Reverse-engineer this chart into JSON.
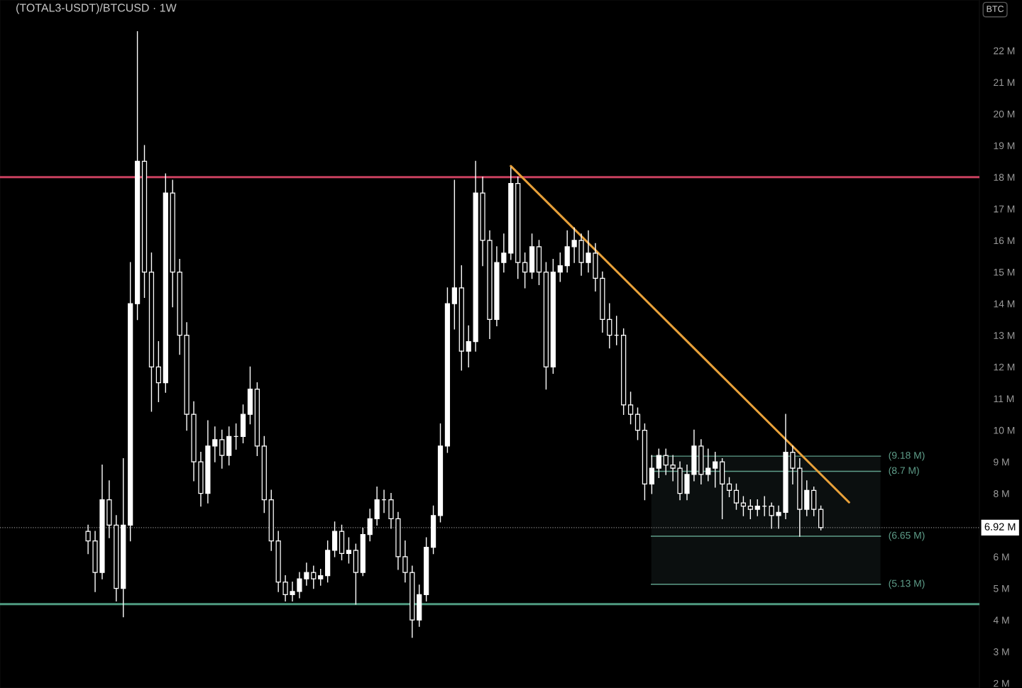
{
  "chart_data": {
    "type": "candlestick",
    "title": "(TOTAL3-USDT)/BTCUSD · 1W",
    "annotations": [
      "BTC"
    ],
    "categories": [
      null,
      null,
      null,
      null,
      null,
      null,
      null,
      null,
      null,
      null,
      null,
      null,
      null,
      null,
      null,
      null,
      null,
      null,
      null,
      null,
      null,
      null,
      null,
      null,
      null,
      null,
      null,
      null,
      null,
      null,
      null,
      null,
      null,
      null,
      null,
      null,
      null,
      null,
      null,
      null,
      null,
      null,
      null,
      null,
      null,
      null,
      null,
      null,
      null,
      null,
      null,
      null,
      null,
      null,
      null,
      null,
      null,
      null,
      null,
      null,
      null,
      null,
      null,
      null,
      null,
      null,
      null,
      null,
      null,
      null,
      null,
      null,
      null,
      null,
      null,
      null,
      null,
      null,
      null,
      null,
      null,
      null,
      null,
      null,
      null,
      null,
      null,
      null,
      null,
      null,
      null,
      null,
      null,
      null,
      null,
      null,
      null,
      null,
      null,
      null,
      null,
      null,
      null,
      null,
      null,
      null,
      null,
      null,
      null,
      null,
      null,
      null,
      null,
      null,
      null,
      null,
      null,
      null,
      null,
      null,
      null,
      null,
      null,
      null,
      null,
      null,
      null,
      null,
      null,
      null,
      null,
      null,
      null,
      null,
      null,
      null,
      null,
      null,
      null
    ],
    "color": "#ffffff",
    "ohlc": [
      null,
      null,
      null,
      null,
      null,
      null,
      null,
      null,
      null,
      null,
      null,
      null,
      [
        6.8,
        7.0,
        6.1,
        6.5
      ],
      [
        6.5,
        6.8,
        4.9,
        5.5
      ],
      [
        5.5,
        8.9,
        5.3,
        7.8
      ],
      [
        7.8,
        8.4,
        6.6,
        7.0
      ],
      [
        7.0,
        7.3,
        4.6,
        5.0
      ],
      [
        5.0,
        9.1,
        4.1,
        7.0
      ],
      [
        7.0,
        15.3,
        6.5,
        14.0
      ],
      [
        14.0,
        22.6,
        13.5,
        18.5
      ],
      [
        18.5,
        19.0,
        14.2,
        15.0
      ],
      [
        15.0,
        15.6,
        10.6,
        12.0
      ],
      [
        12.0,
        12.8,
        10.9,
        11.5
      ],
      [
        11.5,
        18.1,
        11.2,
        17.5
      ],
      [
        17.5,
        17.9,
        13.9,
        15.0
      ],
      [
        15.0,
        15.4,
        12.4,
        13.0
      ],
      [
        13.0,
        13.4,
        10.0,
        10.5
      ],
      [
        10.5,
        10.9,
        8.4,
        9.0
      ],
      [
        9.0,
        9.3,
        7.6,
        8.0
      ],
      [
        8.0,
        10.3,
        7.7,
        9.5
      ],
      [
        9.5,
        10.1,
        9.0,
        9.7
      ],
      [
        9.7,
        10.0,
        8.8,
        9.2
      ],
      [
        9.2,
        10.1,
        8.9,
        9.8
      ],
      [
        9.8,
        10.2,
        9.4,
        9.8
      ],
      [
        9.8,
        10.8,
        9.6,
        10.5
      ],
      [
        10.5,
        12.0,
        10.2,
        11.3
      ],
      [
        11.3,
        11.5,
        9.2,
        9.5
      ],
      [
        9.5,
        9.8,
        7.4,
        7.8
      ],
      [
        7.8,
        8.1,
        6.2,
        6.5
      ],
      [
        6.5,
        6.8,
        4.9,
        5.2
      ],
      [
        5.2,
        5.4,
        4.6,
        4.8
      ],
      [
        4.8,
        5.2,
        4.6,
        4.9
      ],
      [
        4.9,
        5.5,
        4.7,
        5.3
      ],
      [
        5.3,
        5.8,
        5.1,
        5.5
      ],
      [
        5.5,
        5.7,
        5.0,
        5.3
      ],
      [
        5.3,
        5.6,
        5.1,
        5.4
      ],
      [
        5.4,
        6.5,
        5.2,
        6.2
      ],
      [
        6.2,
        7.1,
        6.0,
        6.8
      ],
      [
        6.8,
        7.0,
        5.9,
        6.1
      ],
      [
        6.1,
        6.6,
        5.8,
        6.2
      ],
      [
        6.2,
        6.4,
        4.5,
        5.5
      ],
      [
        5.5,
        6.9,
        5.4,
        6.7
      ],
      [
        6.7,
        7.5,
        6.5,
        7.2
      ],
      [
        7.2,
        8.2,
        7.0,
        7.8
      ],
      [
        7.8,
        8.1,
        7.4,
        7.8
      ],
      [
        7.8,
        8.0,
        6.9,
        7.2
      ],
      [
        7.2,
        7.4,
        5.6,
        6.0
      ],
      [
        6.0,
        6.5,
        5.2,
        5.5
      ],
      [
        5.5,
        5.7,
        3.45,
        4.0
      ],
      [
        4.0,
        5.1,
        3.8,
        4.8
      ],
      [
        4.8,
        6.6,
        4.6,
        6.3
      ],
      [
        6.3,
        7.6,
        6.1,
        7.3
      ],
      [
        7.3,
        10.2,
        7.1,
        9.5
      ],
      [
        9.5,
        14.5,
        9.3,
        14.0
      ],
      [
        14.0,
        17.9,
        13.2,
        14.5
      ],
      [
        14.5,
        15.2,
        11.9,
        12.5
      ],
      [
        12.5,
        13.3,
        12.0,
        12.8
      ],
      [
        12.8,
        18.5,
        12.5,
        17.5
      ],
      [
        17.5,
        18.0,
        15.2,
        16.0
      ],
      [
        16.0,
        16.3,
        12.9,
        13.5
      ],
      [
        13.5,
        15.8,
        13.3,
        15.3
      ],
      [
        15.3,
        16.2,
        15.0,
        15.6
      ],
      [
        15.6,
        18.3,
        15.4,
        17.8
      ],
      [
        17.8,
        18.0,
        14.8,
        15.3
      ],
      [
        15.3,
        15.6,
        14.5,
        15.0
      ],
      [
        15.0,
        16.2,
        14.8,
        15.8
      ],
      [
        15.8,
        16.0,
        14.6,
        15.0
      ],
      [
        15.0,
        15.3,
        11.3,
        12.0
      ],
      [
        12.0,
        15.4,
        11.8,
        15.0
      ],
      [
        15.0,
        15.6,
        14.7,
        15.2
      ],
      [
        15.2,
        16.3,
        15.0,
        15.8
      ],
      [
        15.8,
        16.4,
        15.3,
        16.0
      ],
      [
        16.0,
        16.2,
        14.9,
        15.3
      ],
      [
        15.3,
        16.3,
        15.0,
        15.6
      ],
      [
        15.6,
        15.9,
        14.4,
        14.8
      ],
      [
        14.8,
        15.0,
        13.1,
        13.5
      ],
      [
        13.5,
        14.0,
        12.6,
        13.0
      ],
      [
        13.0,
        13.6,
        12.7,
        13.0
      ],
      [
        13.0,
        13.2,
        10.5,
        10.8
      ],
      [
        10.8,
        11.2,
        10.2,
        10.5
      ],
      [
        10.5,
        10.7,
        9.7,
        10.0
      ],
      [
        10.0,
        10.2,
        7.8,
        8.3
      ],
      [
        8.3,
        9.2,
        8.0,
        8.8
      ],
      [
        8.8,
        9.4,
        8.5,
        9.2
      ],
      [
        9.2,
        9.4,
        8.6,
        8.9
      ],
      [
        8.9,
        9.2,
        8.4,
        8.8
      ],
      [
        8.8,
        9.0,
        7.8,
        8.0
      ],
      [
        8.0,
        8.9,
        7.8,
        8.6
      ],
      [
        8.6,
        10.0,
        8.4,
        9.5
      ],
      [
        9.5,
        9.7,
        8.3,
        8.6
      ],
      [
        8.6,
        9.4,
        8.4,
        8.8
      ],
      [
        8.8,
        9.3,
        8.2,
        9.0
      ],
      [
        9.0,
        9.1,
        7.2,
        8.3
      ],
      [
        8.3,
        8.5,
        7.9,
        8.1
      ],
      [
        8.1,
        8.3,
        7.5,
        7.7
      ],
      [
        7.7,
        7.9,
        7.3,
        7.6
      ],
      [
        7.6,
        7.8,
        7.2,
        7.5
      ],
      [
        7.5,
        7.8,
        7.3,
        7.6
      ],
      [
        7.6,
        7.9,
        7.3,
        7.6
      ],
      [
        7.6,
        7.7,
        6.9,
        7.3
      ],
      [
        7.3,
        7.6,
        6.9,
        7.4
      ],
      [
        7.4,
        10.5,
        7.2,
        9.3
      ],
      [
        9.3,
        9.5,
        8.3,
        8.8
      ],
      [
        8.8,
        9.1,
        6.65,
        7.5
      ],
      [
        7.5,
        8.4,
        7.3,
        8.1
      ],
      [
        8.1,
        8.2,
        7.3,
        7.5
      ],
      [
        7.5,
        7.6,
        6.85,
        6.92
      ],
      null,
      null,
      null,
      null,
      null,
      null,
      null,
      null,
      null,
      null,
      null,
      null,
      null,
      null,
      null,
      null,
      null,
      null,
      null,
      null,
      null,
      null
    ],
    "series": [
      {
        "type": "line",
        "color": "#e8a13a",
        "values": [
          null,
          null,
          null,
          null,
          null,
          null,
          null,
          null,
          null,
          null,
          null,
          null,
          null,
          null,
          null,
          null,
          null,
          null,
          null,
          null,
          null,
          null,
          null,
          null,
          null,
          null,
          null,
          null,
          null,
          null,
          null,
          null,
          null,
          null,
          null,
          null,
          null,
          null,
          null,
          null,
          null,
          null,
          null,
          null,
          null,
          null,
          null,
          null,
          null,
          null,
          null,
          null,
          null,
          null,
          null,
          null,
          null,
          null,
          null,
          null,
          null,
          null,
          null,
          null,
          null,
          null,
          null,
          null,
          null,
          null,
          null,
          null,
          18.35,
          null,
          null,
          null,
          null,
          null,
          null,
          null,
          null,
          null,
          null,
          null,
          null,
          null,
          null,
          null,
          null,
          null,
          null,
          null,
          null,
          null,
          null,
          null,
          null,
          null,
          null,
          null,
          null,
          null,
          null,
          null,
          null,
          null,
          null,
          null,
          null,
          null,
          null,
          null,
          null,
          null,
          null,
          null,
          null,
          null,
          null,
          null,
          7.72,
          null,
          null,
          null,
          null,
          null,
          null,
          null,
          null,
          null,
          null,
          null,
          null,
          null,
          null,
          null,
          null,
          null,
          null
        ]
      }
    ],
    "ylim": [
      1.85,
      23.6
    ],
    "yticks": [
      {
        "value": 2,
        "label": "2 M"
      },
      {
        "value": 3,
        "label": "3 M"
      },
      {
        "value": 4,
        "label": "4 M"
      },
      {
        "value": 5,
        "label": "5 M"
      },
      {
        "value": 6,
        "label": "6 M"
      },
      {
        "value": 8,
        "label": "8 M"
      },
      {
        "value": 9,
        "label": "9 M"
      },
      {
        "value": 10,
        "label": "10 M"
      },
      {
        "value": 11,
        "label": "11 M"
      },
      {
        "value": 12,
        "label": "12 M"
      },
      {
        "value": 13,
        "label": "13 M"
      },
      {
        "value": 14,
        "label": "14 M"
      },
      {
        "value": 15,
        "label": "15 M"
      },
      {
        "value": 16,
        "label": "16 M"
      },
      {
        "value": 17,
        "label": "17 M"
      },
      {
        "value": 18,
        "label": "18 M"
      },
      {
        "value": 19,
        "label": "19 M"
      },
      {
        "value": 20,
        "label": "20 M"
      },
      {
        "value": 21,
        "label": "21 M"
      },
      {
        "value": 22,
        "label": "22 M"
      }
    ],
    "tick_labels": "y",
    "grid": false,
    "legend": false,
    "bands": [
      {
        "axis": "y",
        "from": 5.13,
        "to": 9.18,
        "color": "#0b0f0f"
      }
    ],
    "ref_lines": [
      {
        "axis": "y",
        "value": 18,
        "color": "#c9405f"
      },
      {
        "axis": "y",
        "value": 4.5,
        "color": "#4f9a80"
      },
      {
        "axis": "y",
        "value": 6.92,
        "label": "6.92 M",
        "color": "#8a8a8a",
        "line_style": "dotted"
      },
      {
        "axis": "y",
        "value": 9.18,
        "label": "(9.18 M)",
        "color": "#5f9e8a"
      },
      {
        "axis": "y",
        "value": 8.7,
        "label": "(8.7 M)",
        "color": "#5f9e8a"
      },
      {
        "axis": "y",
        "value": 6.65,
        "label": "(6.65 M)",
        "color": "#5f9e8a"
      },
      {
        "axis": "y",
        "value": 5.13,
        "label": "(5.13 M)",
        "color": "#5f9e8a"
      }
    ]
  }
}
